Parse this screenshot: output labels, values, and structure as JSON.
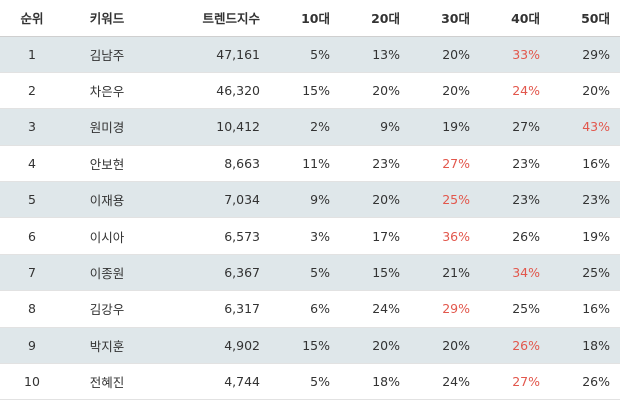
{
  "headers": {
    "rank": "순위",
    "keyword": "키워드",
    "trend_index": "트렌드지수",
    "age10": "10대",
    "age20": "20대",
    "age30": "30대",
    "age40": "40대",
    "age50": "50대"
  },
  "highlight_color": "#e2574c",
  "rows": [
    {
      "rank": "1",
      "keyword": "김남주",
      "trend_index": "47,161",
      "age10": "5%",
      "age20": "13%",
      "age30": "20%",
      "age40": "33%",
      "age50": "29%",
      "highlight": "age40"
    },
    {
      "rank": "2",
      "keyword": "차은우",
      "trend_index": "46,320",
      "age10": "15%",
      "age20": "20%",
      "age30": "20%",
      "age40": "24%",
      "age50": "20%",
      "highlight": "age40"
    },
    {
      "rank": "3",
      "keyword": "원미경",
      "trend_index": "10,412",
      "age10": "2%",
      "age20": "9%",
      "age30": "19%",
      "age40": "27%",
      "age50": "43%",
      "highlight": "age50"
    },
    {
      "rank": "4",
      "keyword": "안보현",
      "trend_index": "8,663",
      "age10": "11%",
      "age20": "23%",
      "age30": "27%",
      "age40": "23%",
      "age50": "16%",
      "highlight": "age30"
    },
    {
      "rank": "5",
      "keyword": "이재용",
      "trend_index": "7,034",
      "age10": "9%",
      "age20": "20%",
      "age30": "25%",
      "age40": "23%",
      "age50": "23%",
      "highlight": "age30"
    },
    {
      "rank": "6",
      "keyword": "이시아",
      "trend_index": "6,573",
      "age10": "3%",
      "age20": "17%",
      "age30": "36%",
      "age40": "26%",
      "age50": "19%",
      "highlight": "age30"
    },
    {
      "rank": "7",
      "keyword": "이종원",
      "trend_index": "6,367",
      "age10": "5%",
      "age20": "15%",
      "age30": "21%",
      "age40": "34%",
      "age50": "25%",
      "highlight": "age40"
    },
    {
      "rank": "8",
      "keyword": "김강우",
      "trend_index": "6,317",
      "age10": "6%",
      "age20": "24%",
      "age30": "29%",
      "age40": "25%",
      "age50": "16%",
      "highlight": "age30"
    },
    {
      "rank": "9",
      "keyword": "박지훈",
      "trend_index": "4,902",
      "age10": "15%",
      "age20": "20%",
      "age30": "20%",
      "age40": "26%",
      "age50": "18%",
      "highlight": "age40"
    },
    {
      "rank": "10",
      "keyword": "전혜진",
      "trend_index": "4,744",
      "age10": "5%",
      "age20": "18%",
      "age30": "24%",
      "age40": "27%",
      "age50": "26%",
      "highlight": "age40"
    }
  ]
}
